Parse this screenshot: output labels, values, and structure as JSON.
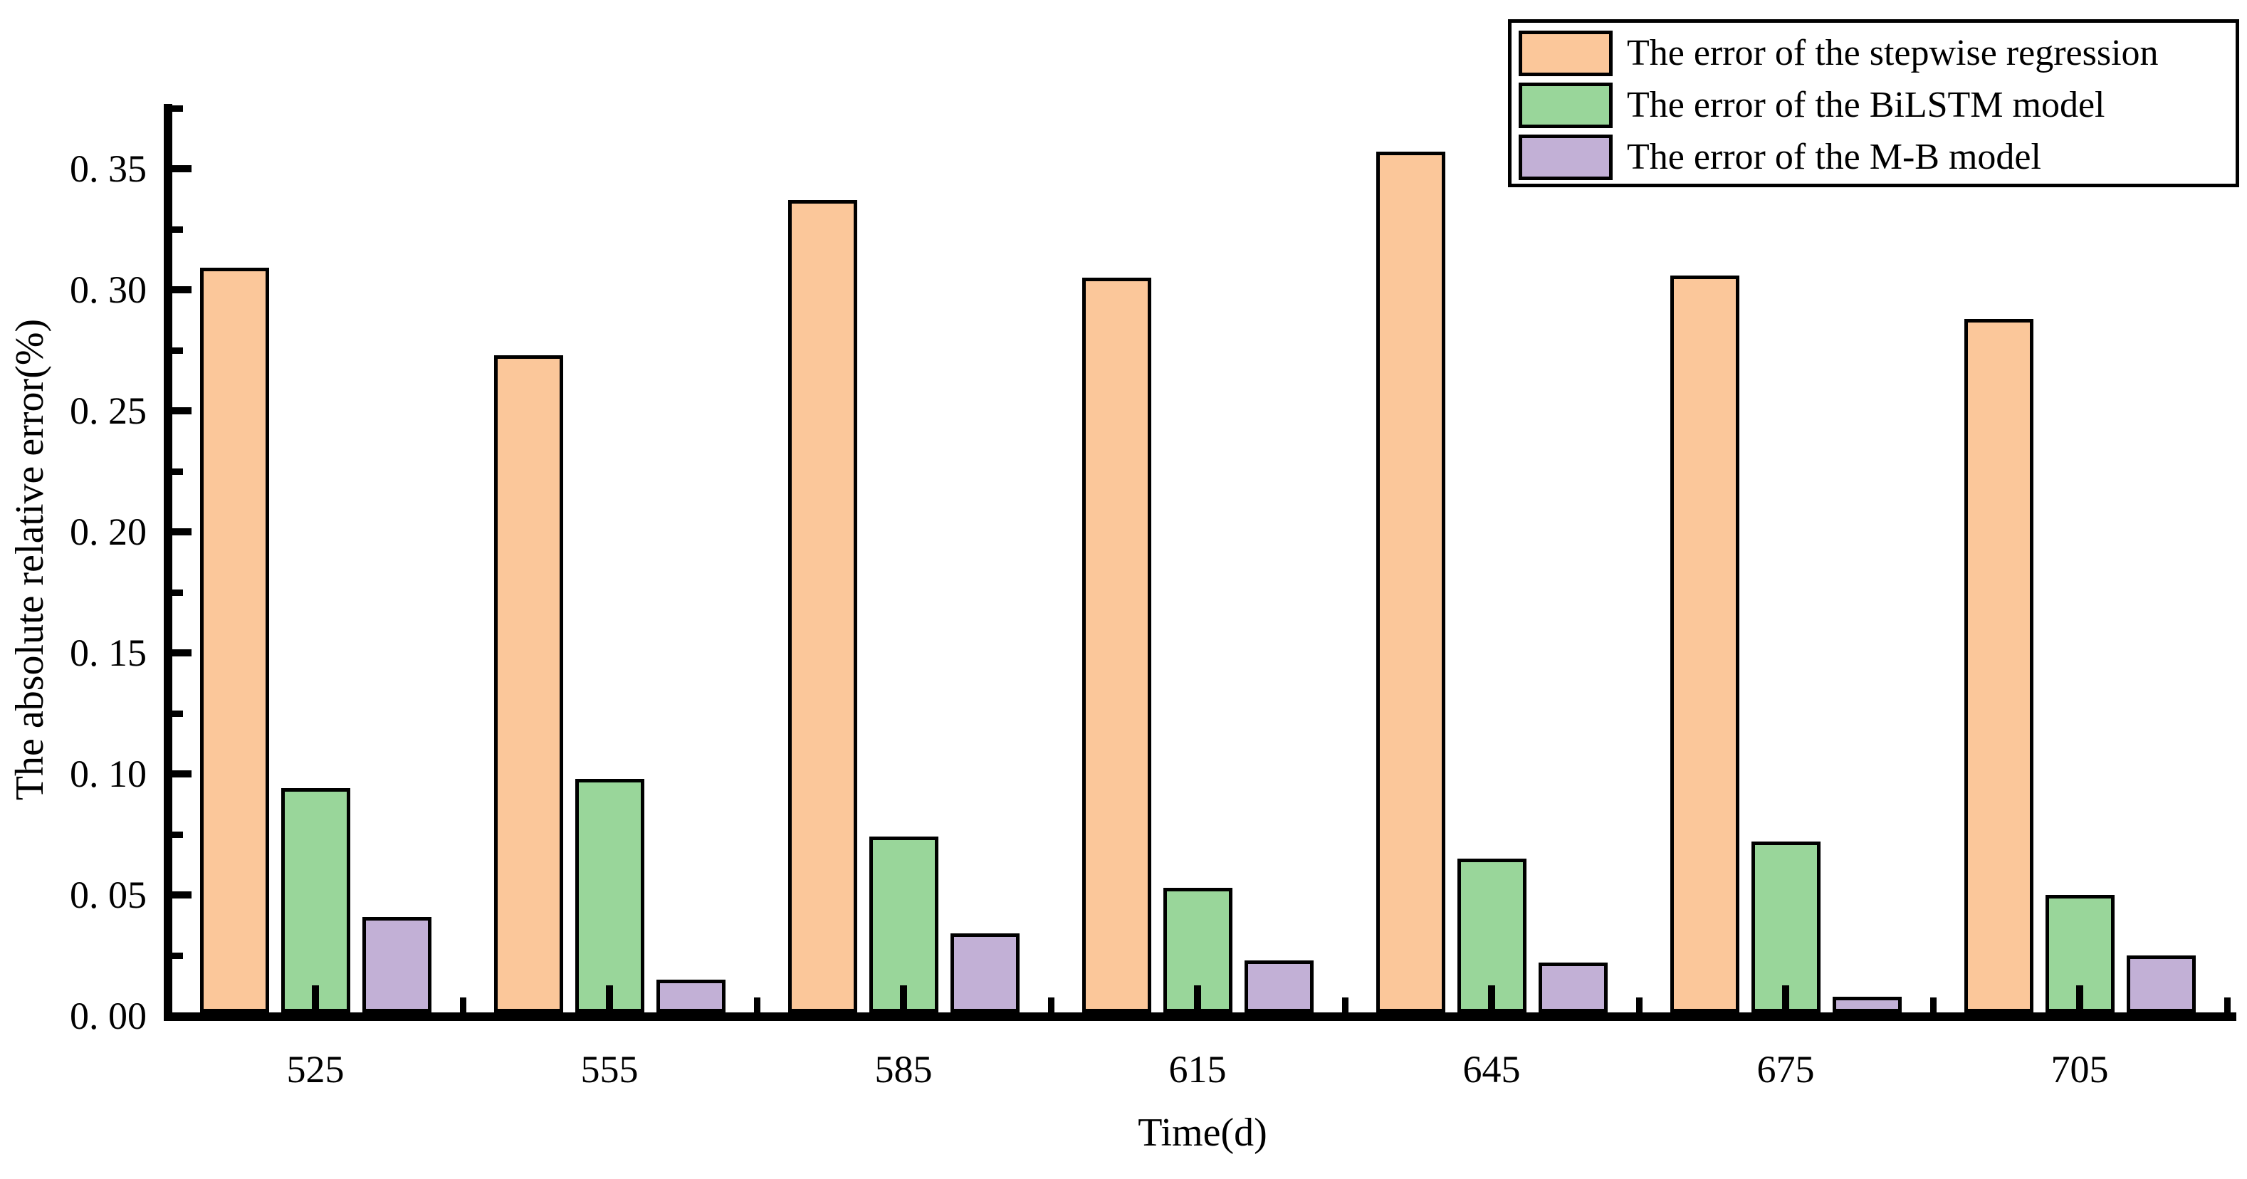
{
  "chart_data": {
    "type": "bar",
    "title": "",
    "xlabel": "Time(d)",
    "ylabel": "The absolute relative error(%)",
    "categories": [
      "525",
      "555",
      "585",
      "615",
      "645",
      "675",
      "705"
    ],
    "series": [
      {
        "name": "The error of the stepwise regression",
        "color": "#FBC79A",
        "values": [
          0.309,
          0.273,
          0.337,
          0.305,
          0.357,
          0.306,
          0.288
        ]
      },
      {
        "name": "The error of the BiLSTM model",
        "color": "#99D69A",
        "values": [
          0.094,
          0.098,
          0.074,
          0.053,
          0.065,
          0.072,
          0.05
        ]
      },
      {
        "name": "The error of the M-B model",
        "color": "#C2B0D6",
        "values": [
          0.041,
          0.015,
          0.034,
          0.023,
          0.022,
          0.008,
          0.025
        ]
      }
    ],
    "y_ticks": [
      {
        "v": 0.0,
        "label": "0. 00"
      },
      {
        "v": 0.05,
        "label": "0. 05"
      },
      {
        "v": 0.1,
        "label": "0. 10"
      },
      {
        "v": 0.15,
        "label": "0. 15"
      },
      {
        "v": 0.2,
        "label": "0. 20"
      },
      {
        "v": 0.25,
        "label": "0. 25"
      },
      {
        "v": 0.3,
        "label": "0. 30"
      },
      {
        "v": 0.35,
        "label": "0. 35"
      }
    ],
    "y_minor_ticks": [
      0.025,
      0.075,
      0.125,
      0.175,
      0.225,
      0.275,
      0.325,
      0.375
    ],
    "ylim": [
      0,
      0.375
    ],
    "grid": false,
    "legend_position": "top-right",
    "axis_color": "#000000",
    "bar_edge_color": "#000000",
    "background_color": "#FFFFFF"
  }
}
